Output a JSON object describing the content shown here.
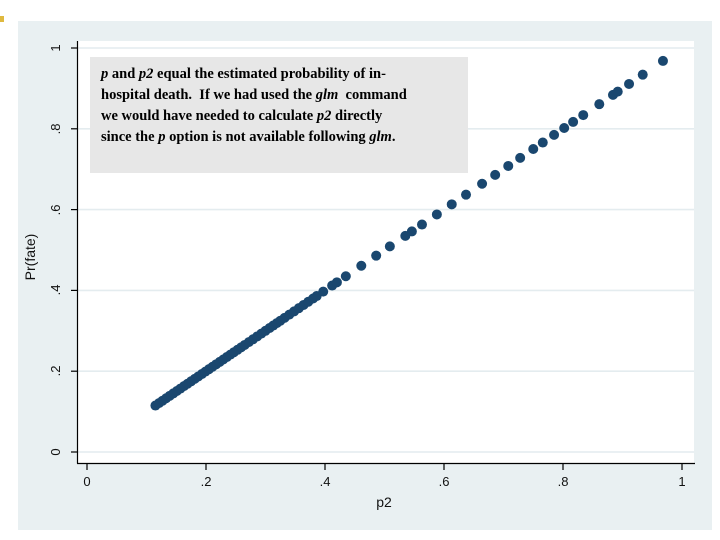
{
  "annotation": {
    "lines": [
      [
        {
          "t": "p",
          "i": true
        },
        {
          "t": " and ",
          "i": false
        },
        {
          "t": "p2",
          "i": true
        },
        {
          "t": " equal the estimated probability of in-",
          "i": false
        }
      ],
      [
        {
          "t": "hospital death.  If we had used the ",
          "i": false
        },
        {
          "t": "glm",
          "i": true
        },
        {
          "t": "  command",
          "i": false
        }
      ],
      [
        {
          "t": "we would have needed to calculate ",
          "i": false
        },
        {
          "t": "p2",
          "i": true
        },
        {
          "t": " directly",
          "i": false
        }
      ],
      [
        {
          "t": "since the ",
          "i": false
        },
        {
          "t": "p",
          "i": true
        },
        {
          "t": " option is not available following ",
          "i": false
        },
        {
          "t": "glm",
          "i": true
        },
        {
          "t": ".",
          "i": false
        }
      ]
    ]
  },
  "chart_data": {
    "type": "scatter",
    "title": "",
    "xlabel": "p2",
    "ylabel": "Pr(fate)",
    "xlim": [
      0,
      1
    ],
    "ylim": [
      0,
      1
    ],
    "grid": "horizontal",
    "legend": "none",
    "x_ticks": {
      "values": [
        0,
        0.2,
        0.4,
        0.6,
        0.8,
        1
      ],
      "labels": [
        "0",
        ".2",
        ".4",
        ".6",
        ".8",
        "1"
      ]
    },
    "y_ticks": {
      "values": [
        0,
        0.2,
        0.4,
        0.6,
        0.8,
        1
      ],
      "labels": [
        "0",
        ".2",
        ".4",
        ".6",
        ".8",
        "1"
      ]
    },
    "colors": {
      "marker": "#1a476f",
      "plot_bg": "#ffffff",
      "region_bg": "#e9f0f2",
      "grid": "#e4ecef",
      "axis": "#000000",
      "annotation_bg": "#e7e7e7"
    },
    "points": [
      [
        0.115,
        0.115
      ],
      [
        0.121,
        0.121
      ],
      [
        0.127,
        0.127
      ],
      [
        0.133,
        0.133
      ],
      [
        0.139,
        0.139
      ],
      [
        0.145,
        0.145
      ],
      [
        0.151,
        0.151
      ],
      [
        0.157,
        0.157
      ],
      [
        0.163,
        0.163
      ],
      [
        0.169,
        0.169
      ],
      [
        0.175,
        0.175
      ],
      [
        0.181,
        0.181
      ],
      [
        0.187,
        0.187
      ],
      [
        0.193,
        0.193
      ],
      [
        0.199,
        0.199
      ],
      [
        0.205,
        0.205
      ],
      [
        0.211,
        0.211
      ],
      [
        0.217,
        0.217
      ],
      [
        0.223,
        0.223
      ],
      [
        0.229,
        0.229
      ],
      [
        0.235,
        0.235
      ],
      [
        0.241,
        0.241
      ],
      [
        0.247,
        0.247
      ],
      [
        0.253,
        0.253
      ],
      [
        0.259,
        0.259
      ],
      [
        0.265,
        0.265
      ],
      [
        0.272,
        0.272
      ],
      [
        0.279,
        0.279
      ],
      [
        0.286,
        0.286
      ],
      [
        0.293,
        0.293
      ],
      [
        0.3,
        0.3
      ],
      [
        0.307,
        0.307
      ],
      [
        0.313,
        0.313
      ],
      [
        0.319,
        0.319
      ],
      [
        0.325,
        0.325
      ],
      [
        0.332,
        0.332
      ],
      [
        0.34,
        0.34
      ],
      [
        0.348,
        0.348
      ],
      [
        0.356,
        0.356
      ],
      [
        0.364,
        0.364
      ],
      [
        0.372,
        0.372
      ],
      [
        0.38,
        0.38
      ],
      [
        0.386,
        0.386
      ],
      [
        0.397,
        0.397
      ],
      [
        0.412,
        0.412
      ],
      [
        0.42,
        0.42
      ],
      [
        0.435,
        0.435
      ],
      [
        0.461,
        0.461
      ],
      [
        0.486,
        0.486
      ],
      [
        0.509,
        0.509
      ],
      [
        0.535,
        0.535
      ],
      [
        0.546,
        0.546
      ],
      [
        0.563,
        0.563
      ],
      [
        0.588,
        0.588
      ],
      [
        0.613,
        0.613
      ],
      [
        0.637,
        0.637
      ],
      [
        0.664,
        0.664
      ],
      [
        0.686,
        0.686
      ],
      [
        0.708,
        0.708
      ],
      [
        0.728,
        0.728
      ],
      [
        0.75,
        0.75
      ],
      [
        0.766,
        0.766
      ],
      [
        0.785,
        0.785
      ],
      [
        0.802,
        0.802
      ],
      [
        0.817,
        0.817
      ],
      [
        0.834,
        0.834
      ],
      [
        0.861,
        0.861
      ],
      [
        0.884,
        0.884
      ],
      [
        0.892,
        0.892
      ],
      [
        0.911,
        0.911
      ],
      [
        0.934,
        0.934
      ],
      [
        0.968,
        0.968
      ]
    ]
  }
}
